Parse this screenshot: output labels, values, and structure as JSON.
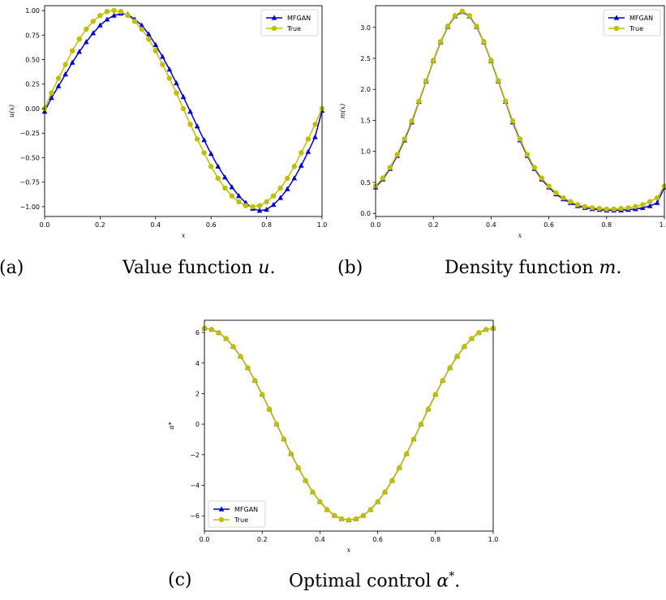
{
  "captions": {
    "a": {
      "tag": "(a)",
      "text": "Value function",
      "var": "u",
      "tail": "."
    },
    "b": {
      "tag": "(b)",
      "text": "Density function",
      "var": "m",
      "tail": "."
    },
    "c": {
      "tag": "(c)",
      "text": "Optimal control",
      "var": "α",
      "sup": "*",
      "tail": "."
    }
  },
  "colors": {
    "mfgan": "#0000cc",
    "true": "#bfbf00",
    "axis": "#000000"
  },
  "chart_data": [
    {
      "type": "line",
      "id": "value-function",
      "xlabel": "x",
      "ylabel": "u(x)",
      "xlim": [
        0,
        1
      ],
      "ylim": [
        -1.1,
        1.05
      ],
      "xticks": [
        0.0,
        0.2,
        0.4,
        0.6,
        0.8,
        1.0
      ],
      "xtick_labels": [
        "0.0",
        "0.2",
        "0.4",
        "0.6",
        "0.8",
        "1.0"
      ],
      "yticks": [
        -1.0,
        -0.75,
        -0.5,
        -0.25,
        0.0,
        0.25,
        0.5,
        0.75,
        1.0
      ],
      "ytick_labels": [
        "−1.00",
        "−0.75",
        "−0.50",
        "−0.25",
        "0.00",
        "0.25",
        "0.50",
        "0.75",
        "1.00"
      ],
      "legend": {
        "position": "top-right",
        "entries": [
          "MFGAN",
          "True"
        ]
      },
      "series": [
        {
          "name": "MFGAN",
          "marker": "triangle",
          "x": [
            0.0,
            0.025,
            0.05,
            0.075,
            0.1,
            0.125,
            0.15,
            0.175,
            0.2,
            0.225,
            0.25,
            0.275,
            0.3,
            0.325,
            0.35,
            0.375,
            0.4,
            0.425,
            0.45,
            0.475,
            0.5,
            0.525,
            0.55,
            0.575,
            0.6,
            0.625,
            0.65,
            0.675,
            0.7,
            0.725,
            0.75,
            0.775,
            0.8,
            0.825,
            0.85,
            0.875,
            0.9,
            0.925,
            0.95,
            0.975,
            1.0
          ],
          "y": [
            -0.03,
            0.11,
            0.23,
            0.35,
            0.47,
            0.58,
            0.68,
            0.77,
            0.85,
            0.91,
            0.95,
            0.97,
            0.96,
            0.91,
            0.85,
            0.76,
            0.65,
            0.53,
            0.4,
            0.26,
            0.12,
            -0.03,
            -0.18,
            -0.32,
            -0.46,
            -0.59,
            -0.7,
            -0.8,
            -0.89,
            -0.96,
            -1.02,
            -1.04,
            -1.03,
            -0.98,
            -0.91,
            -0.82,
            -0.71,
            -0.58,
            -0.44,
            -0.29,
            -0.02
          ]
        },
        {
          "name": "True",
          "marker": "circle",
          "x": [
            0.0,
            0.025,
            0.05,
            0.075,
            0.1,
            0.125,
            0.15,
            0.175,
            0.2,
            0.225,
            0.25,
            0.275,
            0.3,
            0.325,
            0.35,
            0.375,
            0.4,
            0.425,
            0.45,
            0.475,
            0.5,
            0.525,
            0.55,
            0.575,
            0.6,
            0.625,
            0.65,
            0.675,
            0.7,
            0.725,
            0.75,
            0.775,
            0.8,
            0.825,
            0.85,
            0.875,
            0.9,
            0.925,
            0.95,
            0.975,
            1.0
          ],
          "y": [
            0.0,
            0.16,
            0.31,
            0.45,
            0.59,
            0.71,
            0.81,
            0.89,
            0.95,
            0.99,
            1.0,
            0.99,
            0.95,
            0.89,
            0.81,
            0.71,
            0.59,
            0.45,
            0.31,
            0.16,
            0.0,
            -0.16,
            -0.31,
            -0.45,
            -0.59,
            -0.71,
            -0.81,
            -0.89,
            -0.95,
            -0.99,
            -1.0,
            -0.99,
            -0.95,
            -0.89,
            -0.81,
            -0.71,
            -0.59,
            -0.45,
            -0.31,
            -0.16,
            0.0
          ]
        }
      ]
    },
    {
      "type": "line",
      "id": "density-function",
      "xlabel": "x",
      "ylabel": "m(x)",
      "xlim": [
        0,
        1
      ],
      "ylim": [
        -0.05,
        3.35
      ],
      "xticks": [
        0.0,
        0.2,
        0.4,
        0.6,
        0.8,
        1.0
      ],
      "xtick_labels": [
        "0.0",
        "0.2",
        "0.4",
        "0.6",
        "0.8",
        "1.0"
      ],
      "yticks": [
        0.0,
        0.5,
        1.0,
        1.5,
        2.0,
        2.5,
        3.0
      ],
      "ytick_labels": [
        "0.0",
        "0.5",
        "1.0",
        "1.5",
        "2.0",
        "2.5",
        "3.0"
      ],
      "legend": {
        "position": "top-right",
        "entries": [
          "MFGAN",
          "True"
        ]
      },
      "series": [
        {
          "name": "MFGAN",
          "marker": "triangle",
          "x": [
            0.0,
            0.025,
            0.05,
            0.075,
            0.1,
            0.125,
            0.15,
            0.175,
            0.2,
            0.225,
            0.25,
            0.275,
            0.3,
            0.325,
            0.35,
            0.375,
            0.4,
            0.425,
            0.45,
            0.475,
            0.5,
            0.525,
            0.55,
            0.575,
            0.6,
            0.625,
            0.65,
            0.675,
            0.7,
            0.725,
            0.75,
            0.775,
            0.8,
            0.825,
            0.85,
            0.875,
            0.9,
            0.925,
            0.95,
            0.975,
            1.0
          ],
          "y": [
            0.42,
            0.55,
            0.72,
            0.93,
            1.18,
            1.47,
            1.8,
            2.13,
            2.46,
            2.76,
            3.01,
            3.18,
            3.25,
            3.18,
            3.01,
            2.76,
            2.46,
            2.13,
            1.8,
            1.47,
            1.18,
            0.93,
            0.72,
            0.55,
            0.42,
            0.31,
            0.23,
            0.17,
            0.12,
            0.09,
            0.07,
            0.06,
            0.05,
            0.05,
            0.05,
            0.06,
            0.07,
            0.09,
            0.12,
            0.17,
            0.42
          ]
        },
        {
          "name": "True",
          "marker": "circle",
          "x": [
            0.0,
            0.025,
            0.05,
            0.075,
            0.1,
            0.125,
            0.15,
            0.175,
            0.2,
            0.225,
            0.25,
            0.275,
            0.3,
            0.325,
            0.35,
            0.375,
            0.4,
            0.425,
            0.45,
            0.475,
            0.5,
            0.525,
            0.55,
            0.575,
            0.6,
            0.625,
            0.65,
            0.675,
            0.7,
            0.725,
            0.75,
            0.775,
            0.8,
            0.825,
            0.85,
            0.875,
            0.9,
            0.925,
            0.95,
            0.975,
            1.0
          ],
          "y": [
            0.44,
            0.57,
            0.74,
            0.95,
            1.2,
            1.49,
            1.81,
            2.14,
            2.47,
            2.77,
            3.02,
            3.19,
            3.26,
            3.19,
            3.02,
            2.77,
            2.47,
            2.14,
            1.81,
            1.49,
            1.2,
            0.95,
            0.74,
            0.57,
            0.44,
            0.33,
            0.25,
            0.19,
            0.14,
            0.11,
            0.09,
            0.08,
            0.07,
            0.07,
            0.08,
            0.09,
            0.11,
            0.14,
            0.19,
            0.25,
            0.44
          ]
        }
      ]
    },
    {
      "type": "line",
      "id": "optimal-control",
      "xlabel": "x",
      "ylabel": "α*",
      "xlim": [
        0,
        1
      ],
      "ylim": [
        -7.0,
        6.8
      ],
      "xticks": [
        0.0,
        0.2,
        0.4,
        0.6,
        0.8,
        1.0
      ],
      "xtick_labels": [
        "0.0",
        "0.2",
        "0.4",
        "0.6",
        "0.8",
        "1.0"
      ],
      "yticks": [
        -6,
        -4,
        -2,
        0,
        2,
        4,
        6
      ],
      "ytick_labels": [
        "−6",
        "−4",
        "−2",
        "0",
        "2",
        "4",
        "6"
      ],
      "legend": {
        "position": "lower-left",
        "entries": [
          "MFGAN",
          "True"
        ]
      },
      "series": [
        {
          "name": "MFGAN",
          "marker": "triangle",
          "x": [
            0.0,
            0.025,
            0.05,
            0.075,
            0.1,
            0.125,
            0.15,
            0.175,
            0.2,
            0.225,
            0.25,
            0.275,
            0.3,
            0.325,
            0.35,
            0.375,
            0.4,
            0.425,
            0.45,
            0.475,
            0.5,
            0.525,
            0.55,
            0.575,
            0.6,
            0.625,
            0.65,
            0.675,
            0.7,
            0.725,
            0.75,
            0.775,
            0.8,
            0.825,
            0.85,
            0.875,
            0.9,
            0.925,
            0.95,
            0.975,
            1.0
          ],
          "y": [
            6.28,
            6.2,
            5.98,
            5.6,
            5.08,
            4.44,
            3.69,
            2.85,
            1.94,
            0.98,
            0.0,
            -0.98,
            -1.94,
            -2.85,
            -3.69,
            -4.44,
            -5.08,
            -5.6,
            -5.98,
            -6.2,
            -6.28,
            -6.2,
            -5.98,
            -5.6,
            -5.08,
            -4.44,
            -3.69,
            -2.85,
            -1.94,
            -0.98,
            0.0,
            0.98,
            1.94,
            2.85,
            3.69,
            4.44,
            5.08,
            5.6,
            5.98,
            6.2,
            6.28
          ]
        },
        {
          "name": "True",
          "marker": "circle",
          "x": [
            0.0,
            0.025,
            0.05,
            0.075,
            0.1,
            0.125,
            0.15,
            0.175,
            0.2,
            0.225,
            0.25,
            0.275,
            0.3,
            0.325,
            0.35,
            0.375,
            0.4,
            0.425,
            0.45,
            0.475,
            0.5,
            0.525,
            0.55,
            0.575,
            0.6,
            0.625,
            0.65,
            0.675,
            0.7,
            0.725,
            0.75,
            0.775,
            0.8,
            0.825,
            0.85,
            0.875,
            0.9,
            0.925,
            0.95,
            0.975,
            1.0
          ],
          "y": [
            6.28,
            6.2,
            5.98,
            5.6,
            5.08,
            4.44,
            3.69,
            2.85,
            1.94,
            0.98,
            0.0,
            -0.98,
            -1.94,
            -2.85,
            -3.69,
            -4.44,
            -5.08,
            -5.6,
            -5.98,
            -6.2,
            -6.28,
            -6.2,
            -5.98,
            -5.6,
            -5.08,
            -4.44,
            -3.69,
            -2.85,
            -1.94,
            -0.98,
            0.0,
            0.98,
            1.94,
            2.85,
            3.69,
            4.44,
            5.08,
            5.6,
            5.98,
            6.2,
            6.28
          ]
        }
      ]
    }
  ]
}
